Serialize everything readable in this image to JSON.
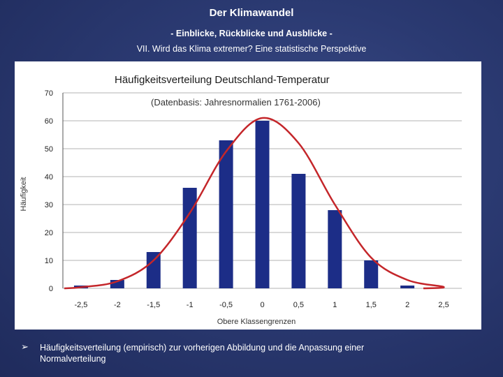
{
  "slide": {
    "title": "Der Klimawandel",
    "subtitle": "- Einblicke, Rückblicke und Ausblicke -",
    "subheading": "VII. Wird das Klima extremer? Eine statistische Perspektive",
    "bullet": "➢",
    "caption": "Häufigkeitsverteilung (empirisch) zur vorherigen Abbildung und die Anpassung einer Normalverteilung"
  },
  "colors": {
    "bar": "#1c2d87",
    "curve": "#c4262a",
    "grid": "#9a9a9a"
  },
  "chart_data": {
    "type": "bar",
    "title": "Häufigkeitsverteilung Deutschland-Temperatur",
    "subtitle": "(Datenbasis: Jahresnormalien 1761-2006)",
    "xlabel": "Obere Klassengrenzen",
    "ylabel": "Häufigkeit",
    "categories": [
      "-2,5",
      "-2",
      "-1,5",
      "-1",
      "-0,5",
      "0",
      "0,5",
      "1",
      "1,5",
      "2",
      "2,5"
    ],
    "values": [
      1,
      3,
      13,
      36,
      53,
      60,
      41,
      28,
      10,
      1,
      0
    ],
    "ylim": [
      0,
      70
    ],
    "yticks": [
      0,
      10,
      20,
      30,
      40,
      50,
      60,
      70
    ],
    "grid": true,
    "series": [
      {
        "name": "Häufigkeit (empirisch)",
        "type": "bar",
        "values": [
          1,
          3,
          13,
          36,
          53,
          60,
          41,
          28,
          10,
          1,
          0
        ]
      },
      {
        "name": "Normalverteilung",
        "type": "line",
        "values": [
          0.4,
          2.5,
          10,
          27,
          49,
          61,
          52,
          30,
          11,
          3,
          0.5
        ]
      }
    ]
  }
}
